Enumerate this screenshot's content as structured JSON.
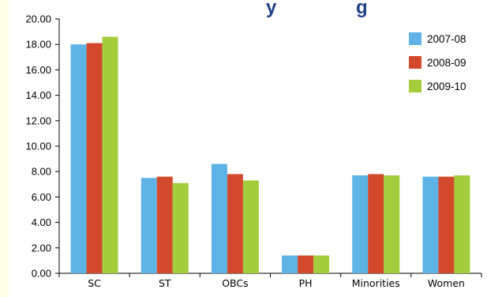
{
  "chart_data": {
    "type": "bar",
    "title": "...y ... g...",
    "xlabel": "",
    "ylabel": "",
    "categories": [
      "SC",
      "ST",
      "OBCs",
      "PH",
      "Minorities",
      "Women"
    ],
    "series": [
      {
        "name": "2007-08",
        "color": "#5eb3e6",
        "values": [
          18.0,
          7.5,
          8.6,
          1.4,
          7.7,
          7.6
        ]
      },
      {
        "name": "2008-09",
        "color": "#d24a2b",
        "values": [
          18.1,
          7.6,
          7.8,
          1.4,
          7.8,
          7.6
        ]
      },
      {
        "name": "2009-10",
        "color": "#a3cd3b",
        "values": [
          18.6,
          7.1,
          7.3,
          1.4,
          7.7,
          7.7
        ]
      }
    ],
    "y_ticks": [
      "0.00",
      "2.00",
      "4.00",
      "6.00",
      "8.00",
      "10.00",
      "12.00",
      "14.00",
      "16.00",
      "18.00",
      "20.00"
    ],
    "ylim": [
      0,
      20
    ],
    "grid": false,
    "legend_position": "top-right"
  }
}
